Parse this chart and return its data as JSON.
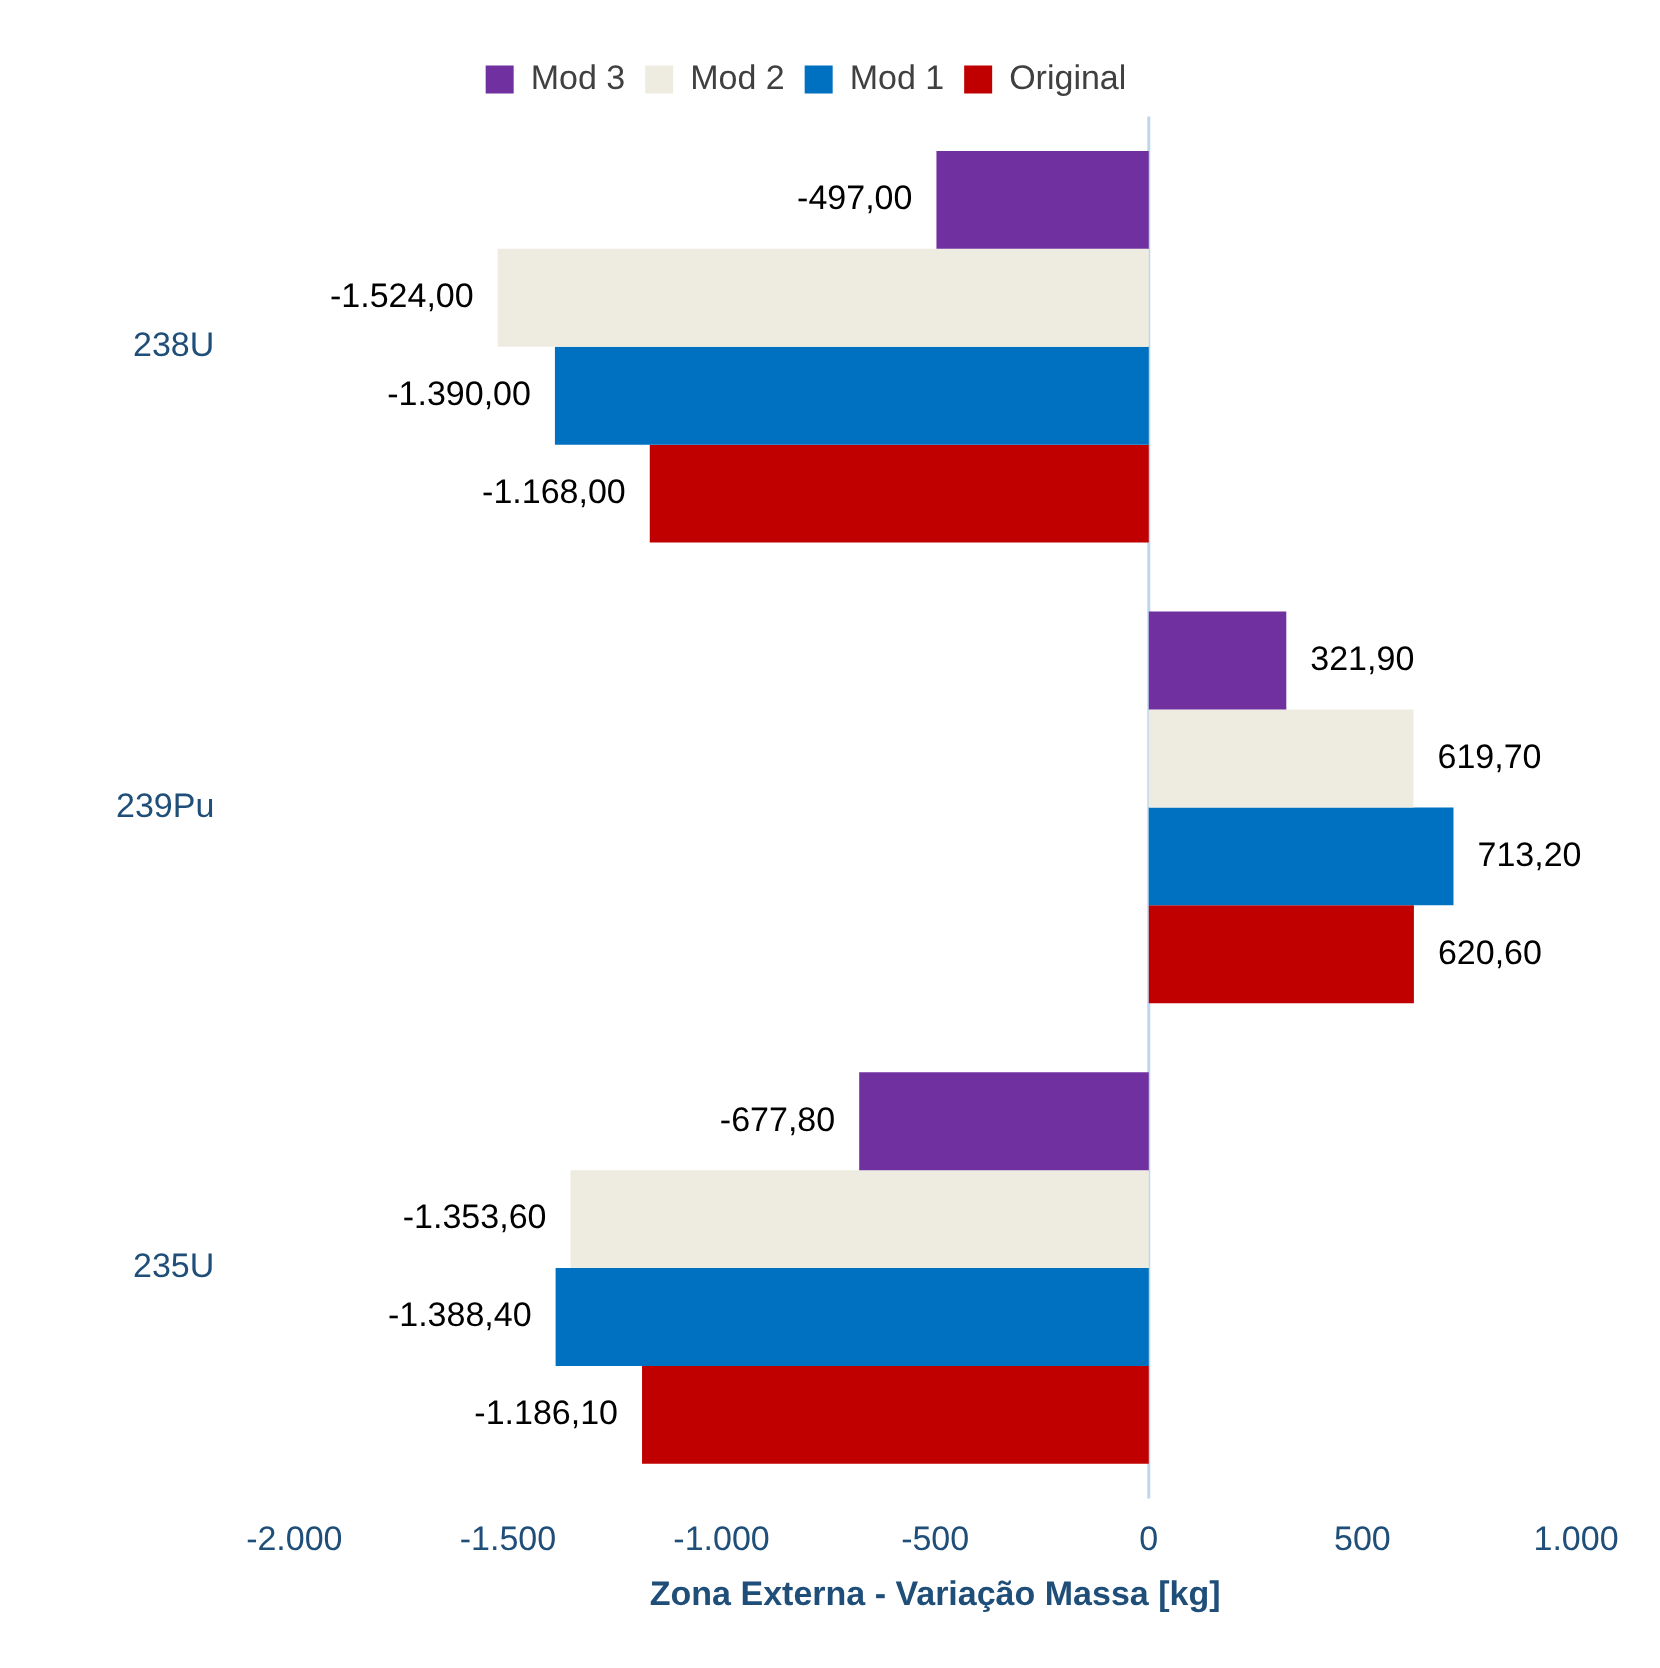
{
  "chart_data": {
    "type": "bar",
    "orientation": "horizontal",
    "xlabel": "Zona Externa - Variação Massa [kg]",
    "categories": [
      "238U",
      "239Pu",
      "235U"
    ],
    "series": [
      {
        "name": "Mod 3",
        "color": "#7030a0",
        "values": [
          -497,
          321.9,
          -677.8
        ],
        "value_labels": [
          "-497,00",
          "321,90",
          "-677,80"
        ]
      },
      {
        "name": "Mod 2",
        "color": "#eeece1",
        "values": [
          -1524,
          619.7,
          -1353.6
        ],
        "value_labels": [
          "-1.524,00",
          "619,70",
          "-1.353,60"
        ]
      },
      {
        "name": "Mod 1",
        "color": "#0070c0",
        "values": [
          -1390,
          713.2,
          -1388.4
        ],
        "value_labels": [
          "-1.390,00",
          "713,20",
          "-1.388,40"
        ]
      },
      {
        "name": "Original",
        "color": "#c00000",
        "values": [
          -1168,
          620.6,
          -1186.1
        ],
        "value_labels": [
          "-1.168,00",
          "620,60",
          "-1.186,10"
        ]
      }
    ],
    "xlim": [
      -2000,
      1000
    ],
    "xticks": [
      {
        "value": -2000,
        "label": "-2.000"
      },
      {
        "value": -1500,
        "label": "-1.500"
      },
      {
        "value": -1000,
        "label": "-1.000"
      },
      -500,
      0,
      500,
      {
        "value": 1000,
        "label": "1.000"
      }
    ],
    "ref_lines": [
      {
        "axis": "x",
        "value": 0,
        "color": "#bdd7ee"
      }
    ],
    "grid": false,
    "legend": "top"
  }
}
